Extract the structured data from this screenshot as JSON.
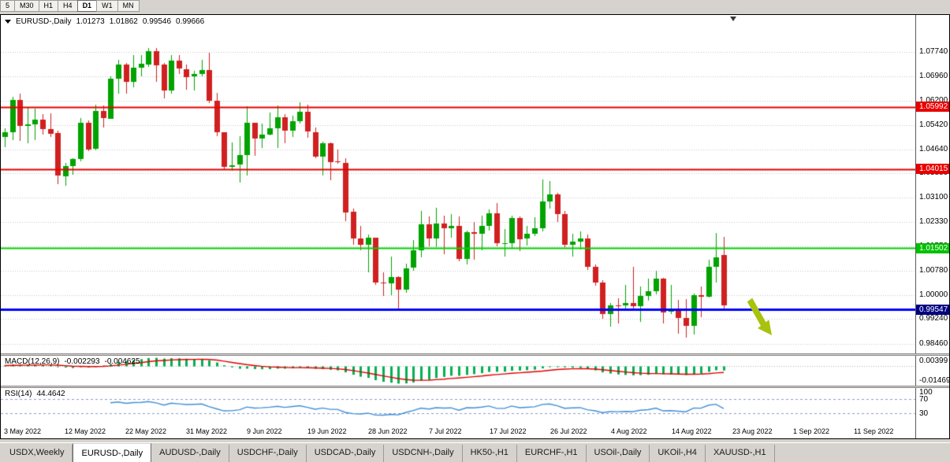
{
  "toolbar": {
    "timeframes": [
      "5",
      "M30",
      "H1",
      "H4",
      "D1",
      "W1",
      "MN"
    ],
    "active_timeframe": "D1"
  },
  "header": {
    "symbol": "EURUSD-,Daily",
    "open": "1.01273",
    "high": "1.01862",
    "low": "0.99546",
    "close": "0.99666"
  },
  "price_axis_labels": [
    "1.07740",
    "1.06960",
    "1.06200",
    "1.05420",
    "1.04640",
    "1.03880",
    "1.03100",
    "1.02330",
    "1.01550",
    "1.00780",
    "1.00000",
    "0.99240",
    "0.98460"
  ],
  "hlines": [
    {
      "price": 1.05992,
      "label": "1.05992",
      "color": "#e80000",
      "tag_color": "#e80000",
      "width": 2,
      "name": "resistance-line-1"
    },
    {
      "price": 1.04015,
      "label": "1.04015",
      "color": "#e80000",
      "tag_color": "#e80000",
      "width": 2,
      "name": "resistance-line-2"
    },
    {
      "price": 1.01502,
      "label": "1.01502",
      "color": "#00d200",
      "tag_color": "#00c000",
      "width": 2,
      "name": "support-line-green"
    },
    {
      "price": 0.99547,
      "label": "0.99547",
      "color": "#0000ff",
      "tag_color": "#000080",
      "width": 3,
      "name": "current-price-line"
    }
  ],
  "macd_panel": {
    "title": "MACD(12,26,9)",
    "main_value": "-0.002293",
    "signal_value": "-0.004625",
    "axis_labels": [
      "0.00399",
      "-0.01469"
    ]
  },
  "rsi_panel": {
    "title": "RSI(14)",
    "value": "44.4642",
    "axis_labels": [
      "100",
      "70",
      "30"
    ],
    "levels": [
      70,
      30
    ]
  },
  "time_axis": {
    "labels": [
      "3 May 2022",
      "12 May 2022",
      "22 May 2022",
      "31 May 2022",
      "9 Jun 2022",
      "19 Jun 2022",
      "28 Jun 2022",
      "7 Jul 2022",
      "17 Jul 2022",
      "26 Jul 2022",
      "4 Aug 2022",
      "14 Aug 2022",
      "23 Aug 2022",
      "1 Sep 2022",
      "11 Sep 2022"
    ]
  },
  "tabs": {
    "items": [
      "USDX,Weekly",
      "EURUSD-,Daily",
      "AUDUSD-,Daily",
      "USDCHF-,Daily",
      "USDCAD-,Daily",
      "USDCNH-,Daily",
      "HK50-,H1",
      "EURCHF-,H1",
      "USOil-,Daily",
      "UKOil-,H4",
      "XAUUSD-,H1"
    ],
    "active": "EURUSD-,Daily"
  },
  "colors": {
    "bull": "#00a300",
    "bear": "#d02020",
    "grid": "#c6c6c6",
    "macd_hist": "#00b050",
    "macd_signal": "#e00000",
    "rsi_line": "#4090d8",
    "rsi_levels": "#8c9cc8",
    "arrow": "#a9c20e"
  },
  "chart_data": {
    "type": "candlestick",
    "symbol": "EURUSD",
    "timeframe": "Daily",
    "title": "EURUSD-,Daily",
    "ylim": [
      0.9815,
      1.0892
    ],
    "indicators": [
      {
        "type": "MACD",
        "params": [
          12,
          26,
          9
        ],
        "last_main": -0.002293,
        "last_signal": -0.004625
      },
      {
        "type": "RSI",
        "params": [
          14
        ],
        "last_value": 44.4642
      }
    ],
    "ohlc": [
      [
        1.0505,
        1.0531,
        1.047,
        1.052
      ],
      [
        1.052,
        1.0632,
        1.0495,
        1.0622
      ],
      [
        1.0622,
        1.0642,
        1.0492,
        1.054
      ],
      [
        1.054,
        1.0599,
        1.0483,
        1.0545
      ],
      [
        1.0545,
        1.0594,
        1.0495,
        1.056
      ],
      [
        1.056,
        1.0576,
        1.0511,
        1.053
      ],
      [
        1.053,
        1.0578,
        1.0503,
        1.0516
      ],
      [
        1.0516,
        1.0525,
        1.0354,
        1.038
      ],
      [
        1.038,
        1.042,
        1.0348,
        1.0412
      ],
      [
        1.0412,
        1.0437,
        1.0384,
        1.0434
      ],
      [
        1.0434,
        1.0564,
        1.0427,
        1.0549
      ],
      [
        1.0549,
        1.0557,
        1.0459,
        1.0465
      ],
      [
        1.0465,
        1.0607,
        1.0462,
        1.0586
      ],
      [
        1.0586,
        1.0604,
        1.0533,
        1.0563
      ],
      [
        1.0563,
        1.0697,
        1.0562,
        1.069
      ],
      [
        1.069,
        1.0748,
        1.0642,
        1.0735
      ],
      [
        1.0735,
        1.074,
        1.0641,
        1.068
      ],
      [
        1.068,
        1.0765,
        1.0661,
        1.0724
      ],
      [
        1.0724,
        1.0765,
        1.0696,
        1.0736
      ],
      [
        1.0736,
        1.0786,
        1.0726,
        1.0778
      ],
      [
        1.0778,
        1.0787,
        1.0678,
        1.0733
      ],
      [
        1.0733,
        1.0739,
        1.0627,
        1.065
      ],
      [
        1.065,
        1.0764,
        1.0642,
        1.0746
      ],
      [
        1.0746,
        1.0764,
        1.0704,
        1.072
      ],
      [
        1.072,
        1.0735,
        1.0653,
        1.0695
      ],
      [
        1.0695,
        1.0714,
        1.0652,
        1.0703
      ],
      [
        1.0703,
        1.0748,
        1.0697,
        1.0716
      ],
      [
        1.0716,
        1.0773,
        1.0611,
        1.0618
      ],
      [
        1.0618,
        1.0643,
        1.0506,
        1.0518
      ],
      [
        1.0518,
        1.052,
        1.04,
        1.0408
      ],
      [
        1.0408,
        1.0485,
        1.0396,
        1.0414
      ],
      [
        1.0414,
        1.0507,
        1.0359,
        1.0445
      ],
      [
        1.0445,
        1.0601,
        1.0381,
        1.0548
      ],
      [
        1.0548,
        1.0549,
        1.0444,
        1.0498
      ],
      [
        1.0498,
        1.0546,
        1.0469,
        1.0511
      ],
      [
        1.0511,
        1.0582,
        1.0508,
        1.0532
      ],
      [
        1.0532,
        1.0605,
        1.0469,
        1.0566
      ],
      [
        1.0566,
        1.0576,
        1.0483,
        1.0523
      ],
      [
        1.0523,
        1.0571,
        1.0503,
        1.0553
      ],
      [
        1.0553,
        1.0614,
        1.0547,
        1.0583
      ],
      [
        1.0583,
        1.0606,
        1.0501,
        1.052
      ],
      [
        1.052,
        1.0535,
        1.0435,
        1.0442
      ],
      [
        1.0442,
        1.0488,
        1.0381,
        1.0484
      ],
      [
        1.0484,
        1.0486,
        1.0365,
        1.0425
      ],
      [
        1.0425,
        1.0463,
        1.0418,
        1.0422
      ],
      [
        1.0422,
        1.0436,
        1.0235,
        1.0265
      ],
      [
        1.0265,
        1.0275,
        1.0161,
        1.018
      ],
      [
        1.018,
        1.022,
        1.0144,
        1.0161
      ],
      [
        1.0161,
        1.0192,
        1.0072,
        1.0183
      ],
      [
        1.0183,
        1.0184,
        1.0032,
        1.004
      ],
      [
        1.004,
        1.0074,
        0.9999,
        1.0037
      ],
      [
        1.0037,
        1.0122,
        1.0,
        1.0058
      ],
      [
        1.0058,
        1.006,
        0.9952,
        1.0018
      ],
      [
        1.0018,
        1.01,
        1.0007,
        1.0086
      ],
      [
        1.0086,
        1.0176,
        1.0079,
        1.0142
      ],
      [
        1.0142,
        1.0269,
        1.0121,
        1.0225
      ],
      [
        1.0225,
        1.025,
        1.0155,
        1.018
      ],
      [
        1.018,
        1.0279,
        1.0152,
        1.0228
      ],
      [
        1.0228,
        1.0254,
        1.013,
        1.0213
      ],
      [
        1.0213,
        1.0258,
        1.0183,
        1.0221
      ],
      [
        1.0221,
        1.025,
        1.0108,
        1.0115
      ],
      [
        1.0115,
        1.0205,
        1.0097,
        1.02
      ],
      [
        1.02,
        1.0234,
        1.0113,
        1.0194
      ],
      [
        1.0194,
        1.0254,
        1.0144,
        1.022
      ],
      [
        1.022,
        1.0274,
        1.0205,
        1.026
      ],
      [
        1.026,
        1.0293,
        1.0155,
        1.0165
      ],
      [
        1.0165,
        1.021,
        1.0123,
        1.0166
      ],
      [
        1.0166,
        1.0254,
        1.0151,
        1.0247
      ],
      [
        1.0247,
        1.0252,
        1.0141,
        1.018
      ],
      [
        1.018,
        1.0221,
        1.0159,
        1.0195
      ],
      [
        1.0195,
        1.0249,
        1.0187,
        1.0212
      ],
      [
        1.0212,
        1.0368,
        1.0202,
        1.0298
      ],
      [
        1.0298,
        1.0364,
        1.0276,
        1.032
      ],
      [
        1.032,
        1.0326,
        1.0233,
        1.0258
      ],
      [
        1.0258,
        1.0268,
        1.0154,
        1.016
      ],
      [
        1.016,
        1.0195,
        1.0122,
        1.0171
      ],
      [
        1.0171,
        1.0203,
        1.0145,
        1.018
      ],
      [
        1.018,
        1.0192,
        1.008,
        1.009
      ],
      [
        1.009,
        1.0097,
        1.003,
        1.004
      ],
      [
        1.004,
        1.0047,
        0.9926,
        0.994
      ],
      [
        0.994,
        0.9975,
        0.99,
        0.9968
      ],
      [
        0.9968,
        0.999,
        0.9911,
        0.9967
      ],
      [
        0.9967,
        1.0033,
        0.9956,
        0.9975
      ],
      [
        0.9975,
        1.009,
        0.9956,
        0.9965
      ],
      [
        0.9965,
        1.0027,
        0.9914,
        0.9998
      ],
      [
        0.9998,
        1.0054,
        0.9984,
        1.0014
      ],
      [
        1.0014,
        1.0079,
        1.0003,
        1.0054
      ],
      [
        1.0054,
        1.0055,
        0.991,
        0.9946
      ],
      [
        0.9946,
        1.0033,
        0.9939,
        0.9952
      ],
      [
        0.9952,
        0.9985,
        0.9878,
        0.9928
      ],
      [
        0.9928,
        0.9987,
        0.9864,
        0.9903
      ],
      [
        0.9903,
        1.0005,
        0.9875,
        1.0
      ],
      [
        1.0,
        1.0029,
        0.993,
        0.9995
      ],
      [
        0.9995,
        1.0114,
        0.9993,
        1.009
      ],
      [
        1.009,
        1.0198,
        1.004,
        1.012
      ],
      [
        1.01273,
        1.01862,
        0.99546,
        0.99666
      ]
    ]
  }
}
